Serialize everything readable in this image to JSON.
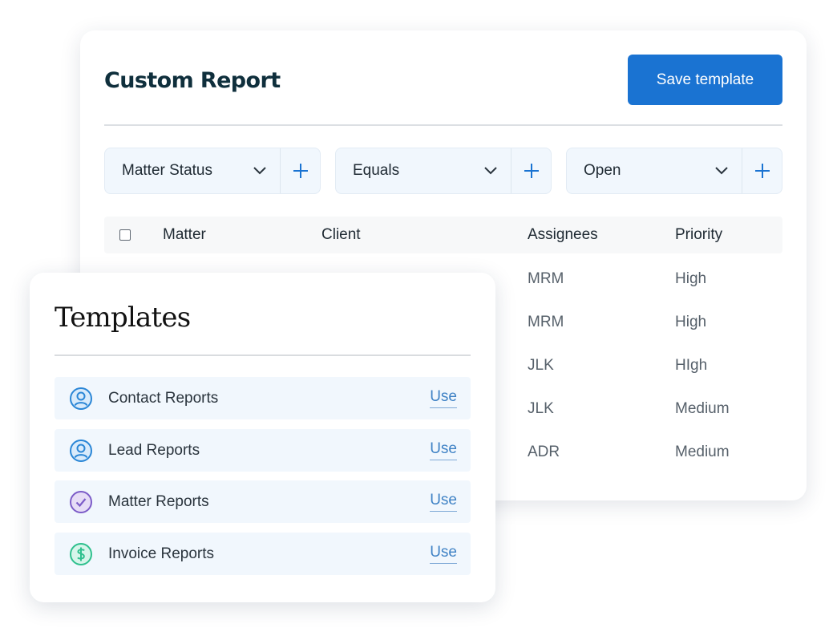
{
  "report": {
    "title": "Custom Report",
    "save_label": "Save template",
    "filters": [
      {
        "label": "Matter Status"
      },
      {
        "label": "Equals"
      },
      {
        "label": "Open"
      }
    ],
    "columns": {
      "matter": "Matter",
      "client": "Client",
      "assignees": "Assignees",
      "priority": "Priority"
    },
    "rows": [
      {
        "assignees": "MRM",
        "priority": "High"
      },
      {
        "assignees": "MRM",
        "priority": "High"
      },
      {
        "assignees": "JLK",
        "priority": "HIgh"
      },
      {
        "assignees": "JLK",
        "priority": "Medium"
      },
      {
        "assignees": "ADR",
        "priority": "Medium"
      }
    ]
  },
  "templates": {
    "title": "Templates",
    "items": [
      {
        "label": "Contact Reports",
        "action": "Use",
        "icon": "user-circle-icon",
        "color": "#2a86d6"
      },
      {
        "label": "Lead Reports",
        "action": "Use",
        "icon": "user-circle-icon",
        "color": "#2a86d6"
      },
      {
        "label": "Matter Reports",
        "action": "Use",
        "icon": "check-circle-icon",
        "color": "#7c5cc8"
      },
      {
        "label": "Invoice Reports",
        "action": "Use",
        "icon": "dollar-circle-icon",
        "color": "#2fc08e"
      }
    ]
  },
  "colors": {
    "accent": "#1a73d2",
    "filter_bg": "#f1f7fd",
    "link": "#3f82c5"
  }
}
